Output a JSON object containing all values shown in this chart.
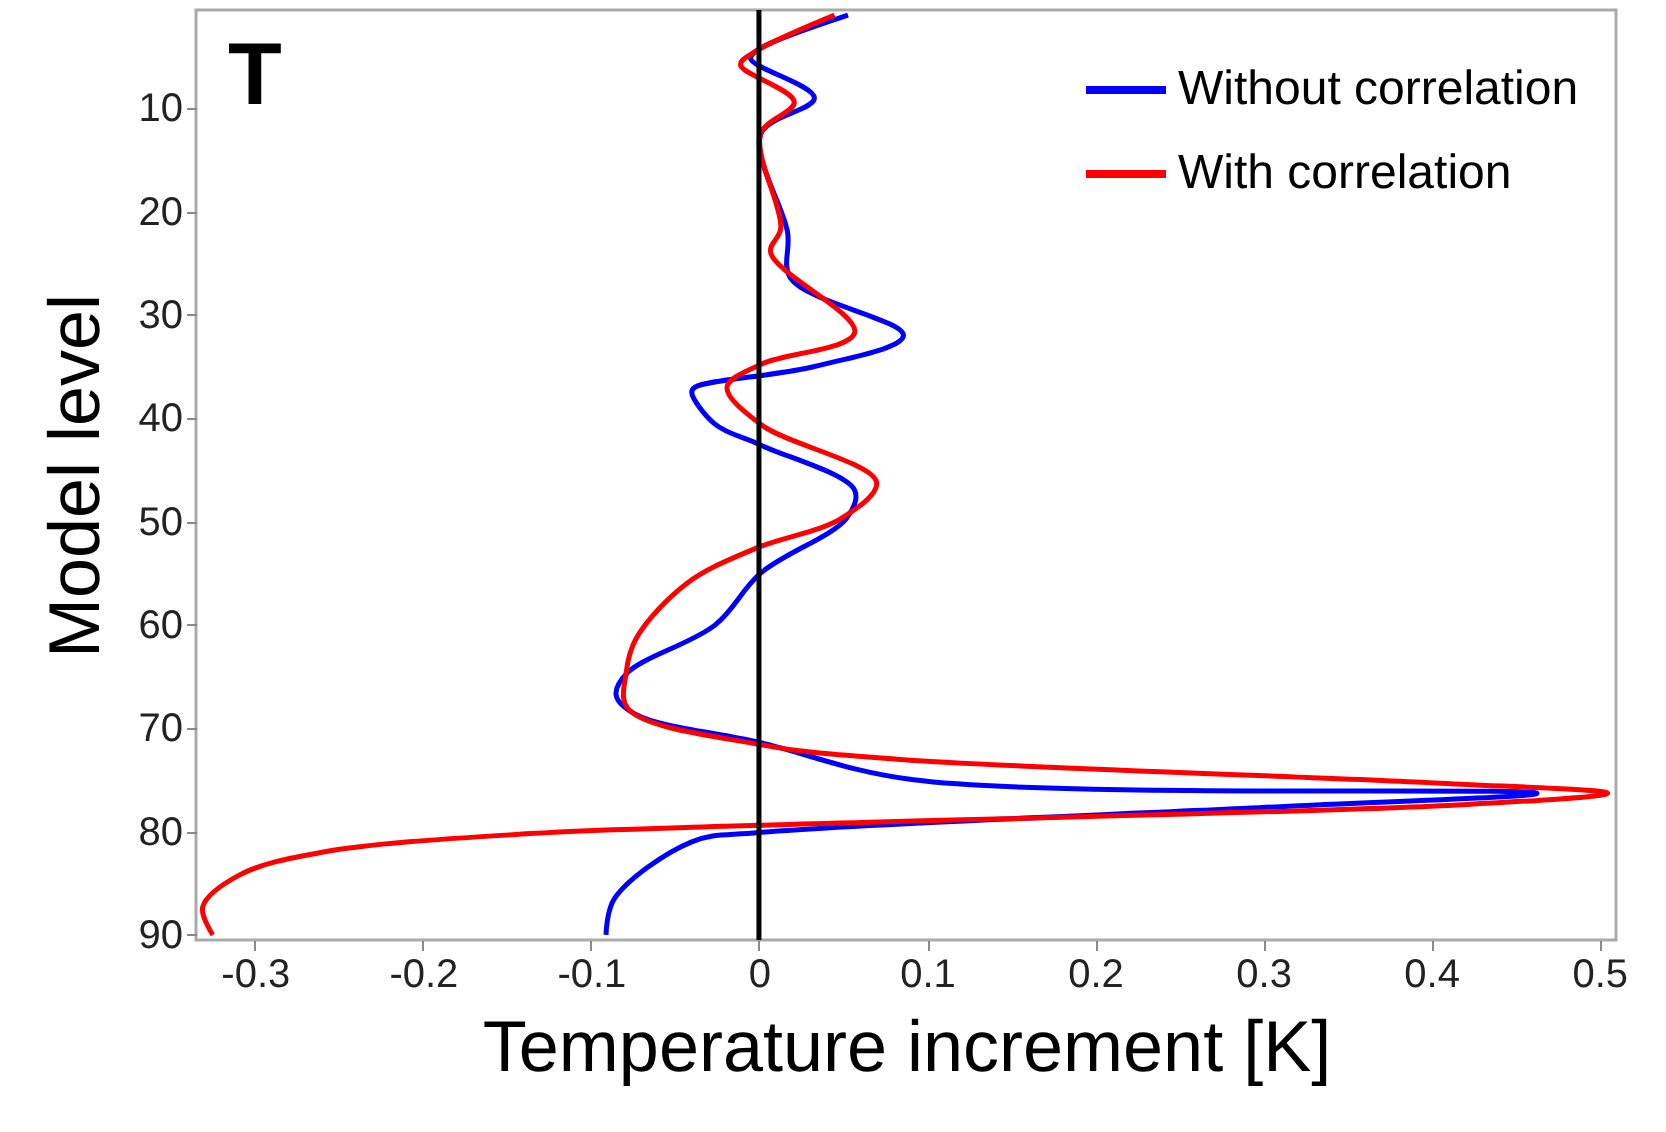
{
  "chart_data": {
    "type": "line",
    "xlabel": "Temperature increment [K]",
    "ylabel": "Model level",
    "annotations": [
      "T"
    ],
    "xlim": [
      -0.335,
      0.51
    ],
    "xticks": [
      -0.3,
      -0.2,
      -0.1,
      0,
      0.1,
      0.2,
      0.3,
      0.4,
      0.5
    ],
    "ylim": [
      90.5,
      0.5
    ],
    "yticks": [
      10,
      20,
      30,
      40,
      50,
      60,
      70,
      80,
      90
    ],
    "legend": "top right",
    "grid": false,
    "ref_lines": [
      {
        "axis": "x",
        "value": 0,
        "color": "#000000"
      }
    ],
    "series": [
      {
        "name": "Without correlation",
        "color": "#0000ff",
        "x": [
          0.053,
          0.001,
          -0.005,
          0.033,
          0.001,
          0.017,
          0.019,
          0.086,
          0.033,
          -0.038,
          -0.04,
          -0.026,
          0.001,
          0.057,
          0.052,
          0.001,
          -0.026,
          -0.078,
          -0.085,
          -0.073,
          0.001,
          0.092,
          0.463,
          0.31,
          0.0,
          -0.04,
          -0.086,
          -0.091
        ],
        "values": [
          1,
          4.2,
          5.2,
          9,
          12.5,
          22,
          26.5,
          32,
          35,
          37,
          37.5,
          40.6,
          42.6,
          47,
          49.7,
          55,
          60,
          64.6,
          66.8,
          68.7,
          71.4,
          75,
          76.3,
          77.6,
          80.1,
          81,
          86.5,
          90
        ]
      },
      {
        "name": "With correlation",
        "color": "#ff0000",
        "x": [
          0.045,
          -0.003,
          -0.011,
          0.021,
          0.001,
          0.013,
          0.007,
          0.057,
          0.001,
          -0.019,
          0.001,
          0.07,
          0.049,
          -0.002,
          -0.043,
          -0.073,
          -0.079,
          -0.078,
          0.001,
          0.082,
          0.402,
          0.505,
          0.419,
          0.0,
          -0.136,
          -0.26,
          -0.309,
          -0.331,
          -0.325
        ],
        "values": [
          1,
          4.6,
          5.8,
          9.4,
          12.5,
          21.6,
          24,
          31.7,
          34.8,
          37,
          40.6,
          46.2,
          49.7,
          52.6,
          56,
          61.3,
          64.6,
          68.1,
          71.6,
          73,
          75.3,
          76.3,
          77.4,
          79.4,
          80.2,
          82,
          84.2,
          87.3,
          90
        ]
      }
    ]
  }
}
